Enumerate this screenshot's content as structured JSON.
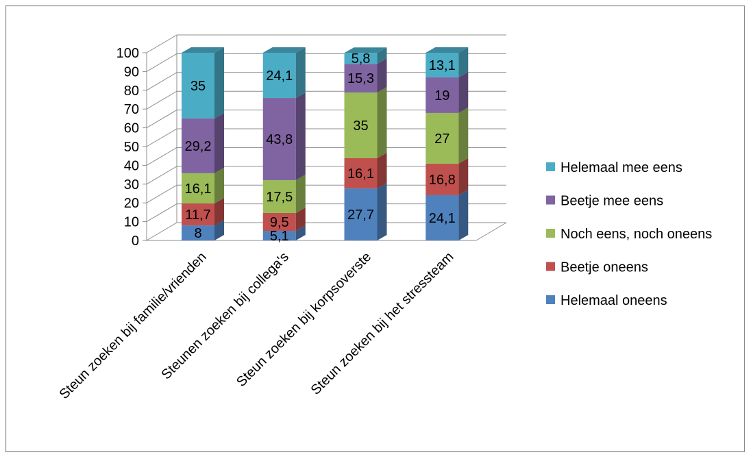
{
  "chart_data": {
    "type": "bar",
    "stacked": true,
    "three_d": true,
    "categories": [
      "Steun zoeken bij familie/vrienden",
      "Steunen zoeken bij collega's",
      "Steun zoeken bij korpsoverste",
      "Steun zoeken bij het stressteam"
    ],
    "series": [
      {
        "name": "Helemaal oneens",
        "color": "#4F81BD",
        "values": [
          8,
          5.1,
          27.7,
          24.1
        ],
        "labels": [
          "8",
          "5,1",
          "27,7",
          "24,1"
        ]
      },
      {
        "name": "Beetje oneens",
        "color": "#C0504D",
        "values": [
          11.7,
          9.5,
          16.1,
          16.8
        ],
        "labels": [
          "11,7",
          "9,5",
          "16,1",
          "16,8"
        ]
      },
      {
        "name": "Noch eens, noch oneens",
        "color": "#9BBB59",
        "values": [
          16.1,
          17.5,
          35,
          27
        ],
        "labels": [
          "16,1",
          "17,5",
          "35",
          "27"
        ]
      },
      {
        "name": "Beetje mee eens",
        "color": "#8064A2",
        "values": [
          29.2,
          43.8,
          15.3,
          19
        ],
        "labels": [
          "29,2",
          "43,8",
          "15,3",
          "19"
        ]
      },
      {
        "name": "Helemaal mee eens",
        "color": "#4BACC6",
        "values": [
          35,
          24.1,
          5.8,
          13.1
        ],
        "labels": [
          "35",
          "24,1",
          "5,8",
          "13,1"
        ]
      }
    ],
    "y_ticks": [
      "0",
      "10",
      "20",
      "30",
      "40",
      "50",
      "60",
      "70",
      "80",
      "90",
      "100"
    ],
    "ylim": [
      0,
      100
    ],
    "grid": true,
    "legend_position": "right",
    "title": "",
    "xlabel": "",
    "ylabel": ""
  }
}
